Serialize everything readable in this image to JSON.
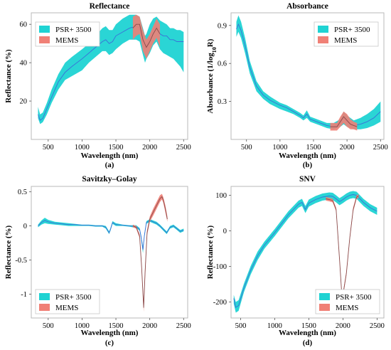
{
  "chart_data": [
    {
      "id": "a",
      "type": "area",
      "title": "Reflectance",
      "caption": "(a)",
      "xlabel": "Wavelength (nm)",
      "ylabel": "Reflectance (%)",
      "xlim": [
        250,
        2560
      ],
      "ylim": [
        0,
        66
      ],
      "xticks": [
        500,
        1000,
        1500,
        2000,
        2500
      ],
      "xtick_labels": [
        "500",
        "1000",
        "1500",
        "2000",
        "2500"
      ],
      "yticks": [
        20,
        40,
        60
      ],
      "ytick_labels": [
        "20",
        "40",
        "60"
      ],
      "legend_position": "top-left",
      "series": [
        {
          "name": "PSR+ 3500",
          "color": "#1fd3d3",
          "line_color": "#3b6fd8",
          "x": [
            350,
            380,
            420,
            480,
            550,
            650,
            750,
            850,
            1000,
            1100,
            1200,
            1300,
            1350,
            1400,
            1450,
            1500,
            1600,
            1700,
            1800,
            1850,
            1900,
            1930,
            1950,
            2000,
            2050,
            2100,
            2150,
            2200,
            2250,
            2300,
            2350,
            2400,
            2450,
            2500
          ],
          "mean": [
            13,
            10,
            11,
            16,
            22,
            30,
            35,
            38,
            42,
            45,
            48,
            51,
            52,
            50,
            51,
            54,
            56,
            58,
            59,
            58,
            50,
            47,
            49,
            53,
            57,
            59,
            55,
            54,
            54,
            52,
            52,
            51,
            51,
            51
          ],
          "upper": [
            17,
            13,
            14,
            19,
            26,
            34,
            40,
            43,
            47,
            50,
            54,
            58,
            59,
            57,
            57,
            60,
            63,
            65,
            65,
            64,
            58,
            54,
            55,
            60,
            63,
            64,
            62,
            61,
            60,
            58,
            58,
            57,
            57,
            56
          ],
          "lower": [
            11,
            8,
            9,
            13,
            19,
            26,
            31,
            33,
            36,
            40,
            43,
            46,
            46,
            44,
            45,
            47,
            50,
            52,
            52,
            51,
            44,
            40,
            42,
            45,
            49,
            51,
            47,
            45,
            44,
            43,
            42,
            40,
            38,
            35
          ]
        },
        {
          "name": "MEMS",
          "color": "#f08076",
          "line_color": "#8a4a4a",
          "x": [
            1750,
            1800,
            1850,
            1900,
            1950,
            2000,
            2050,
            2100,
            2150
          ],
          "mean": [
            58,
            60,
            60,
            52,
            48,
            51,
            55,
            58,
            55
          ],
          "upper": [
            64,
            65,
            64,
            57,
            52,
            55,
            59,
            63,
            60
          ],
          "lower": [
            52,
            54,
            55,
            46,
            42,
            46,
            50,
            53,
            48
          ]
        }
      ]
    },
    {
      "id": "b",
      "type": "area",
      "title": "Absorbance",
      "caption": "(b)",
      "xlabel": "Wavelength (nm)",
      "ylabel": "Absorbance (1/log",
      "ylabel_sub": "10",
      "ylabel_end": "R)",
      "xlim": [
        270,
        2550
      ],
      "ylim": [
        0,
        1.0
      ],
      "xticks": [
        500,
        1000,
        1500,
        2000,
        2500
      ],
      "xtick_labels": [
        "500",
        "1000",
        "1500",
        "2000",
        "2500"
      ],
      "yticks": [
        0.3,
        0.6,
        0.9
      ],
      "ytick_labels": [
        "0.3",
        "0.6",
        "0.9"
      ],
      "legend_position": "top-right",
      "series": [
        {
          "name": "PSR+ 3500",
          "color": "#1fd3d3",
          "line_color": "#3b6fd8",
          "x": [
            350,
            380,
            420,
            480,
            550,
            650,
            750,
            850,
            1000,
            1100,
            1200,
            1300,
            1350,
            1400,
            1450,
            1500,
            1600,
            1700,
            1800,
            1900,
            1950,
            2000,
            2100,
            2200,
            2300,
            2400,
            2500
          ],
          "mean": [
            0.87,
            0.91,
            0.86,
            0.74,
            0.57,
            0.42,
            0.35,
            0.31,
            0.27,
            0.25,
            0.22,
            0.19,
            0.17,
            0.2,
            0.16,
            0.15,
            0.13,
            0.11,
            0.1,
            0.13,
            0.17,
            0.14,
            0.11,
            0.12,
            0.14,
            0.17,
            0.22
          ],
          "upper": [
            0.93,
            0.98,
            0.93,
            0.8,
            0.62,
            0.46,
            0.38,
            0.34,
            0.29,
            0.27,
            0.24,
            0.21,
            0.19,
            0.23,
            0.18,
            0.17,
            0.15,
            0.13,
            0.13,
            0.16,
            0.22,
            0.19,
            0.15,
            0.17,
            0.2,
            0.24,
            0.3
          ],
          "lower": [
            0.81,
            0.85,
            0.8,
            0.68,
            0.52,
            0.38,
            0.32,
            0.28,
            0.24,
            0.22,
            0.2,
            0.17,
            0.15,
            0.17,
            0.14,
            0.13,
            0.11,
            0.09,
            0.08,
            0.1,
            0.12,
            0.1,
            0.08,
            0.08,
            0.09,
            0.11,
            0.14
          ]
        },
        {
          "name": "MEMS",
          "color": "#f08076",
          "line_color": "#8a4a4a",
          "x": [
            1750,
            1800,
            1850,
            1900,
            1950,
            2000,
            2050,
            2100,
            2150
          ],
          "mean": [
            0.1,
            0.1,
            0.1,
            0.14,
            0.18,
            0.15,
            0.12,
            0.11,
            0.1
          ],
          "upper": [
            0.13,
            0.13,
            0.13,
            0.18,
            0.22,
            0.2,
            0.16,
            0.14,
            0.13
          ],
          "lower": [
            0.07,
            0.07,
            0.07,
            0.1,
            0.13,
            0.1,
            0.08,
            0.08,
            0.07
          ]
        }
      ]
    },
    {
      "id": "c",
      "type": "area",
      "title": "Savitzky–Golay",
      "caption": "(c)",
      "xlabel": "Wavelength (nm)",
      "ylabel": "Reflectance (%)",
      "xlim": [
        250,
        2560
      ],
      "ylim": [
        -1.35,
        0.58
      ],
      "xticks": [
        500,
        1000,
        1500,
        2000,
        2500
      ],
      "xtick_labels": [
        "500",
        "1000",
        "1500",
        "2000",
        "2500"
      ],
      "yticks": [
        0.5,
        0,
        -0.5,
        -1
      ],
      "ytick_labels": [
        "0.5",
        "0",
        "-0.5",
        "-1"
      ],
      "legend_position": "bottom-left",
      "series": [
        {
          "name": "PSR+ 3500",
          "color": "#1fd3d3",
          "line_color": "#3b6fd8",
          "x": [
            350,
            400,
            450,
            500,
            600,
            700,
            800,
            900,
            1000,
            1100,
            1200,
            1300,
            1350,
            1400,
            1420,
            1450,
            1500,
            1600,
            1700,
            1800,
            1850,
            1870,
            1900,
            1920,
            1950,
            2000,
            2050,
            2100,
            2150,
            2200,
            2250,
            2300,
            2350,
            2400,
            2450,
            2500
          ],
          "mean": [
            0.0,
            0.05,
            0.08,
            0.06,
            0.04,
            0.03,
            0.02,
            0.02,
            0.01,
            0.01,
            0.0,
            0.0,
            -0.02,
            -0.1,
            -0.05,
            0.05,
            0.02,
            0.01,
            0.0,
            -0.01,
            -0.05,
            -0.15,
            -0.35,
            -0.15,
            0.05,
            0.08,
            0.06,
            0.04,
            0.0,
            -0.05,
            -0.1,
            -0.02,
            0.0,
            -0.04,
            -0.08,
            -0.06
          ],
          "upper": [
            0.02,
            0.08,
            0.12,
            0.09,
            0.06,
            0.05,
            0.04,
            0.03,
            0.02,
            0.02,
            0.01,
            0.01,
            -0.0,
            -0.08,
            -0.03,
            0.07,
            0.04,
            0.02,
            0.01,
            0.01,
            -0.03,
            -0.12,
            -0.3,
            -0.12,
            0.07,
            0.1,
            0.08,
            0.06,
            0.02,
            -0.03,
            -0.08,
            0.0,
            0.02,
            -0.02,
            -0.06,
            -0.04
          ],
          "lower": [
            -0.02,
            0.02,
            0.04,
            0.03,
            0.02,
            0.01,
            0.0,
            0.0,
            -0.0,
            -0.0,
            -0.01,
            -0.01,
            -0.04,
            -0.12,
            -0.07,
            0.03,
            0.0,
            -0.0,
            -0.01,
            -0.03,
            -0.07,
            -0.18,
            -0.4,
            -0.18,
            0.03,
            0.06,
            0.04,
            0.02,
            -0.02,
            -0.07,
            -0.12,
            -0.04,
            -0.02,
            -0.06,
            -0.1,
            -0.08
          ]
        },
        {
          "name": "MEMS",
          "color": "#f08076",
          "line_color": "#8a4a4a",
          "x": [
            1750,
            1800,
            1850,
            1880,
            1910,
            1930,
            1960,
            2000,
            2050,
            2100,
            2150,
            2180,
            2200,
            2230,
            2260
          ],
          "mean": [
            0.0,
            -0.02,
            -0.15,
            -0.6,
            -1.2,
            -0.7,
            -0.1,
            0.1,
            0.2,
            0.3,
            0.4,
            0.43,
            0.38,
            0.25,
            0.1
          ],
          "upper": [
            0.02,
            0.0,
            -0.12,
            -0.55,
            -1.12,
            -0.62,
            -0.06,
            0.14,
            0.25,
            0.35,
            0.45,
            0.47,
            0.42,
            0.3,
            0.14
          ],
          "lower": [
            -0.02,
            -0.04,
            -0.18,
            -0.65,
            -1.26,
            -0.78,
            -0.14,
            0.06,
            0.15,
            0.25,
            0.35,
            0.39,
            0.34,
            0.2,
            0.06
          ]
        }
      ]
    },
    {
      "id": "d",
      "type": "area",
      "title": "SNV",
      "caption": "(d)",
      "xlabel": "Wavelength (nm)",
      "ylabel": "Reflectance (%)",
      "xlim": [
        360,
        2600
      ],
      "ylim": [
        -245,
        125
      ],
      "xticks": [
        500,
        1000,
        1500,
        2000,
        2500
      ],
      "xtick_labels": [
        "500",
        "1000",
        "1500",
        "2000",
        "2500"
      ],
      "yticks": [
        100,
        0,
        -100,
        -200
      ],
      "ytick_labels": [
        "100",
        "0",
        "-100",
        "-200"
      ],
      "legend_position": "bottom-right",
      "series": [
        {
          "name": "PSR+ 3500",
          "color": "#1fd3d3",
          "line_color": "#3b6fd8",
          "x": [
            400,
            430,
            470,
            550,
            650,
            750,
            850,
            1000,
            1100,
            1200,
            1300,
            1350,
            1400,
            1450,
            1500,
            1600,
            1700,
            1800,
            1850,
            1900,
            1950,
            2000,
            2050,
            2100,
            2150,
            2200,
            2300,
            2400,
            2500
          ],
          "mean": [
            -190,
            -215,
            -210,
            -160,
            -110,
            -70,
            -40,
            -5,
            20,
            45,
            65,
            75,
            80,
            60,
            78,
            88,
            95,
            98,
            97,
            90,
            82,
            88,
            95,
            100,
            102,
            100,
            80,
            65,
            55
          ],
          "upper": [
            -180,
            -200,
            -195,
            -148,
            -98,
            -58,
            -30,
            5,
            30,
            55,
            75,
            85,
            90,
            70,
            88,
            98,
            105,
            108,
            107,
            100,
            92,
            98,
            105,
            110,
            112,
            110,
            90,
            75,
            65
          ],
          "lower": [
            -205,
            -230,
            -225,
            -172,
            -122,
            -82,
            -50,
            -15,
            10,
            35,
            55,
            65,
            70,
            50,
            68,
            78,
            85,
            88,
            87,
            80,
            72,
            78,
            85,
            90,
            92,
            90,
            70,
            55,
            45
          ]
        },
        {
          "name": "MEMS",
          "color": "#f08076",
          "line_color": "#8a4a4a",
          "x": [
            1750,
            1800,
            1850,
            1900,
            1950,
            1980,
            2000,
            2050,
            2100,
            2150,
            2200,
            2230
          ],
          "mean": [
            90,
            88,
            85,
            60,
            -80,
            -170,
            -180,
            -120,
            -20,
            60,
            95,
            98
          ],
          "upper": [
            95,
            93,
            90,
            65,
            -74,
            -164,
            -174,
            -114,
            -14,
            66,
            100,
            103
          ],
          "lower": [
            85,
            83,
            80,
            55,
            -86,
            -176,
            -186,
            -126,
            -26,
            54,
            90,
            93
          ]
        }
      ]
    }
  ]
}
